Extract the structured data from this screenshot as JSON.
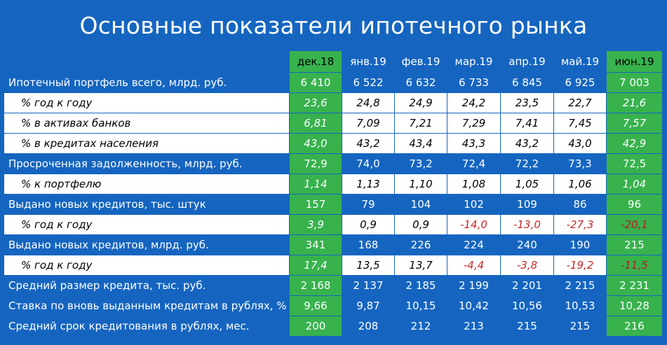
{
  "title": "Основные показатели ипотечного рынка",
  "columns": [
    "",
    "дек.18",
    "янв.19",
    "фев.19",
    "мар.19",
    "апр.19",
    "май.19",
    "июн.19"
  ],
  "rows": [
    {
      "label": "Ипотечный портфель всего, млрд. руб.",
      "type": "main",
      "values": [
        "6 410",
        "6 522",
        "6 632",
        "6 733",
        "6 845",
        "6 925",
        "7 003"
      ]
    },
    {
      "label": "% год к году",
      "type": "sub",
      "values": [
        "23,6",
        "24,8",
        "24,9",
        "24,2",
        "23,5",
        "22,7",
        "21,6"
      ]
    },
    {
      "label": "% в активах банков",
      "type": "sub",
      "values": [
        "6,81",
        "7,09",
        "7,21",
        "7,29",
        "7,41",
        "7,45",
        "7,57"
      ]
    },
    {
      "label": "% в кредитах населения",
      "type": "sub",
      "values": [
        "43,0",
        "43,2",
        "43,4",
        "43,3",
        "43,2",
        "43,0",
        "42,9"
      ]
    },
    {
      "label": "Просроченная задолженность, млрд. руб.",
      "type": "main",
      "values": [
        "72,9",
        "74,0",
        "73,2",
        "72,4",
        "72,2",
        "73,3",
        "72,5"
      ]
    },
    {
      "label": "% к портфелю",
      "type": "sub",
      "values": [
        "1,14",
        "1,13",
        "1,10",
        "1,08",
        "1,05",
        "1,06",
        "1,04"
      ]
    },
    {
      "label": "Выдано новых кредитов, тыс. штук",
      "type": "main",
      "values": [
        "157",
        "79",
        "104",
        "102",
        "109",
        "86",
        "96"
      ]
    },
    {
      "label": "% год к году",
      "type": "sub",
      "values": [
        "3,9",
        "0,9",
        "0,9",
        "-14,0",
        "-13,0",
        "-27,3",
        "-20,1"
      ]
    },
    {
      "label": "Выдано новых кредитов, млрд. руб.",
      "type": "main",
      "values": [
        "341",
        "168",
        "226",
        "224",
        "240",
        "190",
        "215"
      ]
    },
    {
      "label": "% год к году",
      "type": "sub",
      "values": [
        "17,4",
        "13,5",
        "13,7",
        "-4,4",
        "-3,8",
        "-19,2",
        "-11,5"
      ]
    },
    {
      "label": "Средний размер кредита, тыс. руб.",
      "type": "main",
      "values": [
        "2 168",
        "2 137",
        "2 185",
        "2 199",
        "2 201",
        "2 215",
        "2 231"
      ]
    },
    {
      "label": "Ставка по вновь выданным кредитам в рублях, %",
      "type": "main",
      "values": [
        "9,66",
        "9,87",
        "10,15",
        "10,42",
        "10,56",
        "10,53",
        "10,28"
      ]
    },
    {
      "label": "Средний срок кредитования в рублях, мес.",
      "type": "main",
      "values": [
        "200",
        "208",
        "212",
        "213",
        "215",
        "215",
        "216"
      ]
    }
  ],
  "colors": {
    "background": "#1565c0",
    "highlight_column": "#37b24d",
    "negative": "#c62828",
    "sub_row": "#ffffff"
  }
}
